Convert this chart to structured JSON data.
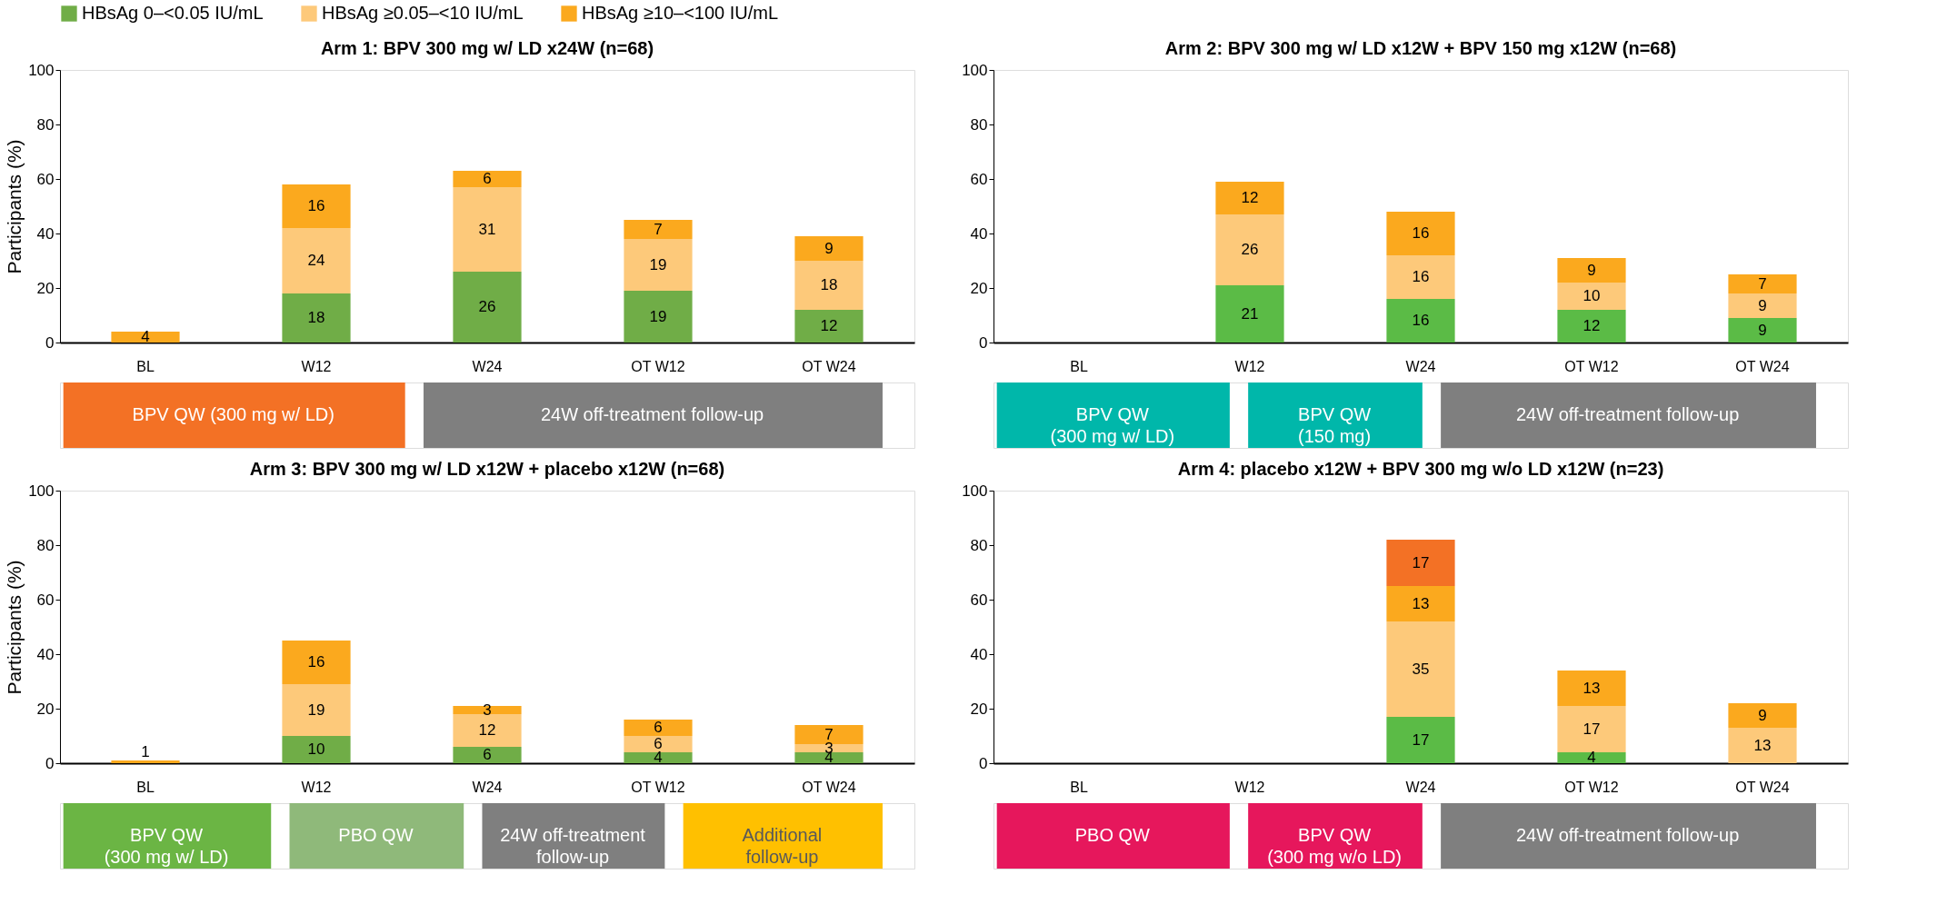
{
  "chart_data": [
    {
      "type": "bar",
      "stacked": true,
      "title": "Arm 1: BPV 300 mg w/ LD x24W (n=68)",
      "ylabel": "Participants (%)",
      "categories": [
        "BL",
        "W12",
        "W24",
        "OT W12",
        "OT W24"
      ],
      "ylim": [
        0,
        100
      ],
      "yticks": [
        0,
        20,
        40,
        60,
        80,
        100
      ],
      "data_labels": true,
      "grid": false,
      "legend": "top",
      "series": [
        {
          "name": "HBsAg 0–<0.05 IU/mL",
          "color": "#70ad47",
          "values": [
            null,
            18,
            26,
            19,
            12
          ]
        },
        {
          "name": "HBsAg ≥0.05–<10 IU/mL",
          "color": "#fdc97a",
          "values": [
            null,
            24,
            31,
            19,
            18
          ]
        },
        {
          "name": "HBsAg ≥10–<100 IU/mL",
          "color": "#fba91e",
          "values": [
            4,
            16,
            6,
            7,
            9
          ]
        }
      ],
      "annotations": [
        "BPV QW (300 mg w/ LD)",
        "24W off-treatment follow-up"
      ]
    },
    {
      "type": "bar",
      "stacked": true,
      "title": "Arm 2: BPV 300 mg w/ LD x12W + BPV 150 mg x12W (n=68)",
      "categories": [
        "BL",
        "W12",
        "W24",
        "OT W12",
        "OT W24"
      ],
      "ylim": [
        0,
        100
      ],
      "yticks": [
        0,
        20,
        40,
        60,
        80,
        100
      ],
      "data_labels": true,
      "grid": false,
      "series": [
        {
          "color": "#5bbb46",
          "values": [
            null,
            21,
            16,
            12,
            9
          ]
        },
        {
          "color": "#fdc97a",
          "values": [
            null,
            26,
            16,
            10,
            9
          ]
        },
        {
          "color": "#fba91e",
          "values": [
            null,
            12,
            16,
            9,
            7
          ]
        }
      ],
      "annotations": [
        "BPV QW\n(300 mg w/ LD)",
        "BPV QW\n(150 mg)",
        "24W off-treatment follow-up"
      ]
    },
    {
      "type": "bar",
      "stacked": true,
      "title": "Arm 3: BPV 300 mg w/ LD x12W + placebo x12W  (n=68)",
      "ylabel": "Participants (%)",
      "categories": [
        "BL",
        "W12",
        "W24",
        "OT W12",
        "OT W24"
      ],
      "ylim": [
        0,
        100
      ],
      "yticks": [
        0,
        20,
        40,
        60,
        80,
        100
      ],
      "data_labels": true,
      "grid": false,
      "series": [
        {
          "color": "#70ad47",
          "values": [
            null,
            10,
            6,
            4,
            4
          ]
        },
        {
          "color": "#fdc97a",
          "values": [
            null,
            19,
            12,
            6,
            3
          ]
        },
        {
          "color": "#fba91e",
          "values": [
            1,
            16,
            3,
            6,
            7
          ]
        }
      ],
      "annotations": [
        "BPV QW\n(300 mg w/ LD)",
        "PBO QW",
        "24W off-treatment\nfollow-up",
        "Additional\nfollow-up"
      ]
    },
    {
      "type": "bar",
      "stacked": true,
      "title": "Arm 4: placebo x12W + BPV 300 mg w/o LD x12W  (n=23)",
      "categories": [
        "BL",
        "W12",
        "W24",
        "OT W12",
        "OT W24"
      ],
      "ylim": [
        0,
        100
      ],
      "yticks": [
        0,
        20,
        40,
        60,
        80,
        100
      ],
      "data_labels": true,
      "grid": false,
      "series": [
        {
          "color": "#5bbb46",
          "values": [
            null,
            null,
            17,
            4,
            null
          ]
        },
        {
          "color": "#fdc97a",
          "values": [
            null,
            null,
            35,
            17,
            13
          ]
        },
        {
          "color": "#fba91e",
          "values": [
            null,
            null,
            13,
            13,
            9
          ]
        },
        {
          "color": "#f37125",
          "values": [
            null,
            null,
            17,
            null,
            null
          ]
        }
      ],
      "annotations": [
        "PBO QW",
        "BPV QW\n(300 mg w/o LD)",
        "24W off-treatment follow-up"
      ]
    }
  ]
}
